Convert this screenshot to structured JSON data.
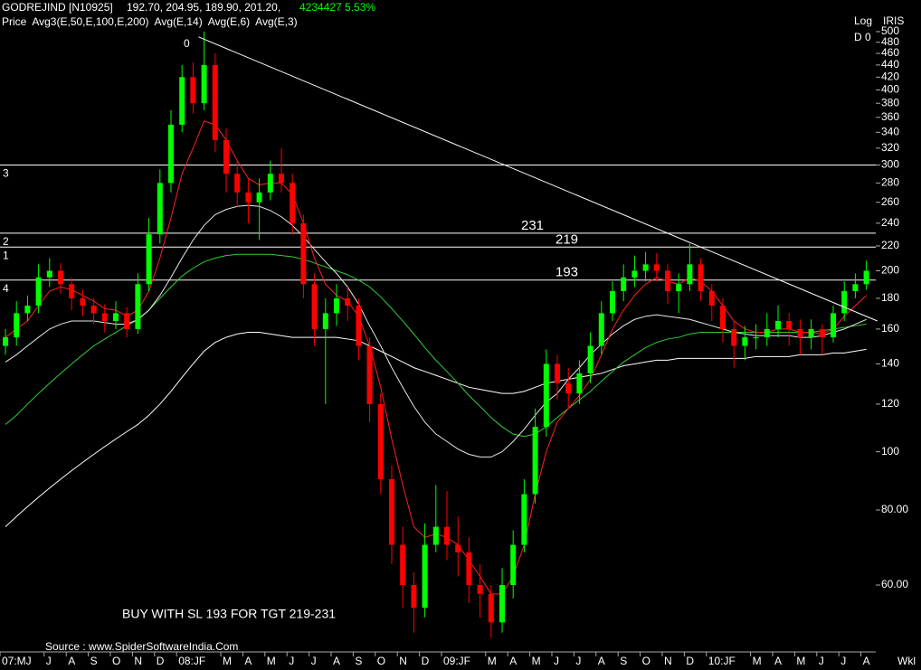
{
  "chart_data": {
    "type": "candlestick",
    "symbol": "GODREJIND [N10925]",
    "quote": "192.70, 204.95, 189.90, 201.20,",
    "change": "4234427 5.53%",
    "indicators": "Price  Avg3(E,50,E,100,E,200)  Avg(E,14)  Avg(E,6)  Avg(E,3)",
    "scale_label": "Log",
    "source_label": "IRIS",
    "period_label": "D 0",
    "peak_label": "0",
    "timeframe": "Wkl",
    "annotation": "BUY WITH SL 193 FOR TGT 219-231",
    "source": "Source : www.SpiderSoftwareIndia.Com",
    "log": true,
    "up_color": "#00ff00",
    "down_color": "#ff0000",
    "categories": [
      "07:MJ",
      null,
      null,
      null,
      "J",
      null,
      "A",
      null,
      "S",
      null,
      "O",
      null,
      "N",
      null,
      "D",
      null,
      "08:JF",
      null,
      null,
      null,
      "M",
      null,
      "A",
      null,
      "M",
      null,
      "J",
      null,
      "J",
      null,
      "A",
      null,
      "S",
      null,
      "O",
      null,
      "N",
      null,
      "D",
      null,
      "09:JF",
      null,
      null,
      null,
      "M",
      null,
      "A",
      null,
      "M",
      null,
      "J",
      null,
      "J",
      null,
      "A",
      null,
      "S",
      null,
      "O",
      null,
      "N",
      null,
      "D",
      null,
      "10:JF",
      null,
      null,
      null,
      "M",
      null,
      "A",
      null,
      "M",
      null,
      "J",
      null,
      "J",
      null,
      "A"
    ],
    "open": [
      150,
      155,
      170,
      175,
      195,
      200,
      190,
      180,
      175,
      170,
      165,
      170,
      160,
      190,
      230,
      280,
      350,
      420,
      380,
      440,
      330,
      290,
      270,
      260,
      270,
      290,
      280,
      240,
      190,
      160,
      170,
      180,
      175,
      150,
      120,
      90,
      70,
      60,
      55,
      70,
      75,
      70,
      68,
      60,
      58,
      52,
      60,
      70,
      85,
      110,
      140,
      130,
      125,
      135,
      150,
      170,
      185,
      195,
      200,
      205,
      200,
      185,
      190,
      205,
      185,
      175,
      160,
      150,
      155,
      155,
      160,
      165,
      160,
      155,
      160,
      155,
      170,
      185,
      190
    ],
    "high": [
      160,
      178,
      182,
      205,
      210,
      206,
      195,
      186,
      180,
      176,
      178,
      174,
      198,
      245,
      295,
      370,
      440,
      445,
      500,
      460,
      345,
      305,
      285,
      285,
      305,
      320,
      290,
      248,
      198,
      180,
      190,
      188,
      180,
      155,
      125,
      95,
      75,
      63,
      76,
      88,
      86,
      78,
      72,
      65,
      60,
      64,
      74,
      90,
      118,
      148,
      145,
      138,
      142,
      158,
      178,
      192,
      205,
      212,
      215,
      214,
      205,
      198,
      222,
      210,
      190,
      180,
      165,
      162,
      163,
      170,
      175,
      170,
      166,
      166,
      163,
      175,
      192,
      198,
      208
    ],
    "low": [
      145,
      150,
      165,
      170,
      188,
      183,
      172,
      168,
      163,
      158,
      160,
      155,
      157,
      185,
      222,
      270,
      340,
      365,
      370,
      315,
      270,
      255,
      240,
      225,
      262,
      270,
      230,
      180,
      150,
      120,
      162,
      165,
      142,
      112,
      85,
      65,
      55,
      50,
      53,
      68,
      66,
      62,
      56,
      53,
      49,
      50,
      57,
      68,
      82,
      106,
      122,
      118,
      120,
      130,
      145,
      165,
      178,
      188,
      192,
      192,
      176,
      170,
      185,
      178,
      165,
      152,
      138,
      142,
      148,
      150,
      155,
      150,
      145,
      148,
      145,
      152,
      165,
      180,
      186
    ],
    "close": [
      155,
      170,
      175,
      195,
      200,
      190,
      180,
      175,
      170,
      165,
      170,
      160,
      190,
      230,
      280,
      350,
      420,
      380,
      440,
      330,
      290,
      270,
      260,
      270,
      290,
      280,
      240,
      190,
      160,
      170,
      180,
      175,
      150,
      120,
      90,
      70,
      60,
      55,
      70,
      75,
      70,
      68,
      60,
      58,
      52,
      60,
      70,
      85,
      110,
      140,
      130,
      125,
      135,
      150,
      170,
      185,
      195,
      200,
      205,
      200,
      185,
      190,
      205,
      185,
      175,
      160,
      150,
      155,
      155,
      160,
      165,
      160,
      155,
      160,
      155,
      170,
      185,
      190,
      200
    ],
    "series": [
      {
        "color": "#ffffff",
        "values": [
          75,
          78,
          81,
          84,
          87,
          90,
          93,
          96,
          99,
          102,
          105,
          108,
          111,
          115,
          120,
          126,
          133,
          140,
          147,
          152,
          155,
          157,
          158,
          158,
          157,
          156,
          155,
          155,
          155,
          155,
          155,
          154,
          153,
          150,
          147,
          144,
          141,
          138,
          136,
          134,
          132,
          130,
          128,
          127,
          126,
          125,
          125,
          126,
          128,
          130,
          131,
          132,
          133,
          134,
          135,
          137,
          139,
          140,
          141,
          142,
          142,
          143,
          143,
          143,
          143,
          143,
          143,
          143,
          144,
          144,
          144,
          144,
          145,
          145,
          145,
          146,
          146,
          147,
          148
        ]
      },
      {
        "color": "#33cc33",
        "values": [
          111,
          115,
          120,
          125,
          130,
          135,
          140,
          145,
          150,
          154,
          158,
          162,
          166,
          172,
          180,
          188,
          196,
          202,
          207,
          210,
          212,
          213,
          213,
          213,
          213,
          212,
          211,
          209,
          206,
          203,
          200,
          197,
          193,
          188,
          181,
          173,
          165,
          157,
          149,
          142,
          136,
          130,
          124,
          119,
          114,
          110,
          107,
          106,
          107,
          110,
          114,
          118,
          122,
          126,
          131,
          136,
          141,
          145,
          149,
          152,
          154,
          155,
          157,
          158,
          158,
          158,
          158,
          158,
          158,
          158,
          158,
          158,
          158,
          158,
          159,
          160,
          161,
          162,
          163
        ]
      },
      {
        "color": "#e8e8e8",
        "values": [
          141,
          145,
          150,
          155,
          160,
          163,
          165,
          165,
          165,
          164,
          163,
          163,
          166,
          172,
          182,
          195,
          210,
          225,
          238,
          248,
          253,
          256,
          257,
          256,
          252,
          246,
          238,
          228,
          217,
          207,
          198,
          188,
          176,
          162,
          150,
          138,
          128,
          119,
          112,
          107,
          104,
          101,
          99,
          98,
          98,
          100,
          104,
          109,
          115,
          121,
          125,
          132,
          138,
          145,
          151,
          157,
          162,
          166,
          168,
          169,
          168,
          167,
          166,
          164,
          162,
          160,
          158,
          157,
          156,
          156,
          156,
          156,
          155,
          155,
          156,
          158,
          160,
          163,
          166
        ]
      },
      {
        "color": "#ff2020",
        "values": [
          155,
          160,
          165,
          175,
          185,
          188,
          186,
          182,
          178,
          173,
          172,
          168,
          172,
          185,
          210,
          245,
          290,
          320,
          355,
          350,
          330,
          305,
          285,
          278,
          280,
          280,
          268,
          240,
          210,
          190,
          182,
          178,
          168,
          150,
          128,
          105,
          88,
          75,
          72,
          73,
          72,
          70,
          66,
          62,
          58,
          58,
          62,
          70,
          85,
          100,
          112,
          118,
          124,
          132,
          145,
          160,
          172,
          182,
          190,
          195,
          192,
          190,
          195,
          192,
          185,
          175,
          165,
          160,
          158,
          158,
          160,
          160,
          158,
          158,
          157,
          160,
          168,
          175,
          182
        ]
      }
    ],
    "trendline": {
      "x": [
        17.5,
        79
      ],
      "y": [
        490,
        165
      ]
    },
    "levels": [
      {
        "value": 300,
        "marker": "3"
      },
      {
        "value": 231,
        "marker": "2",
        "label": "231"
      },
      {
        "value": 219,
        "marker": "1",
        "label": "219"
      },
      {
        "value": 193,
        "marker": "4",
        "label": "193"
      }
    ],
    "ylim": [
      46.6,
      523
    ],
    "yticks": [
      500,
      480,
      460,
      440,
      420,
      400,
      380,
      360,
      340,
      320,
      300,
      280,
      260,
      240,
      220,
      200,
      180,
      160,
      140,
      120,
      100,
      {
        "value": 80,
        "label": "80.00"
      },
      {
        "value": 60,
        "label": "60.00"
      }
    ]
  }
}
